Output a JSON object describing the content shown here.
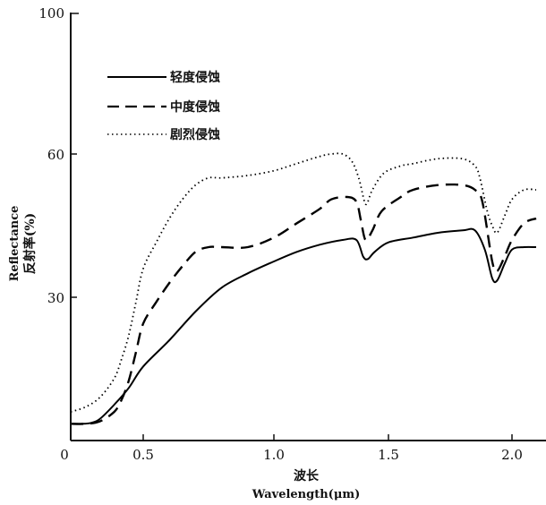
{
  "chart_data": {
    "type": "line",
    "xlabel_cn": "波长",
    "xlabel_en": "Wavelength(μm)",
    "ylabel_en": "Reflectance",
    "ylabel_cn": "反射率(%)",
    "xlim": [
      0,
      2.1
    ],
    "ylim": [
      0,
      100
    ],
    "x_ticks": [
      "0",
      "0.5",
      "1.0",
      "1.5",
      "2.0"
    ],
    "y_ticks": [
      "30",
      "60",
      "100"
    ],
    "grid": false,
    "legend_position": "top-left",
    "series": [
      {
        "name": "轻度侵蚀",
        "style": "solid",
        "x": [
          0.0,
          0.08,
          0.14,
          0.2,
          0.3,
          0.4,
          0.5,
          0.6,
          0.7,
          0.8,
          0.9,
          1.0,
          1.1,
          1.2,
          1.3,
          1.36,
          1.39,
          1.41,
          1.44,
          1.5,
          1.6,
          1.7,
          1.8,
          1.85,
          1.89,
          1.92,
          1.94,
          1.97,
          2.0,
          2.05,
          2.1
        ],
        "values": [
          3.5,
          3.5,
          3.7,
          4.5,
          7.5,
          11.0,
          15.5,
          21.0,
          27.0,
          32.0,
          35.0,
          37.5,
          39.5,
          41.0,
          42.0,
          42.0,
          38.5,
          38.0,
          39.5,
          41.5,
          42.5,
          43.5,
          44.0,
          44.0,
          40.0,
          34.0,
          33.5,
          37.0,
          40.0,
          40.5,
          40.5
        ]
      },
      {
        "name": "中度侵蚀",
        "style": "dashed",
        "x": [
          0.0,
          0.1,
          0.2,
          0.3,
          0.35,
          0.4,
          0.45,
          0.5,
          0.55,
          0.6,
          0.65,
          0.7,
          0.75,
          0.8,
          0.9,
          1.0,
          1.1,
          1.2,
          1.25,
          1.32,
          1.36,
          1.38,
          1.4,
          1.43,
          1.47,
          1.55,
          1.6,
          1.7,
          1.8,
          1.85,
          1.88,
          1.92,
          1.94,
          1.97,
          2.0,
          2.05,
          2.1
        ],
        "values": [
          3.5,
          3.5,
          4.0,
          6.0,
          8.5,
          12.5,
          18.5,
          24.5,
          29.0,
          33.0,
          36.5,
          39.5,
          40.5,
          40.5,
          40.5,
          42.5,
          45.5,
          48.5,
          50.5,
          51.0,
          50.0,
          46.0,
          42.0,
          44.0,
          48.0,
          51.0,
          52.5,
          53.5,
          53.5,
          52.5,
          50.0,
          37.5,
          35.5,
          38.5,
          42.0,
          45.5,
          46.5
        ]
      },
      {
        "name": "剧烈侵蚀",
        "style": "dotted",
        "x": [
          0.0,
          0.1,
          0.2,
          0.3,
          0.35,
          0.4,
          0.45,
          0.5,
          0.55,
          0.6,
          0.65,
          0.7,
          0.75,
          0.8,
          0.9,
          1.0,
          1.1,
          1.2,
          1.25,
          1.3,
          1.34,
          1.37,
          1.39,
          1.4,
          1.41,
          1.43,
          1.48,
          1.55,
          1.6,
          1.7,
          1.8,
          1.85,
          1.87,
          1.9,
          1.92,
          1.94,
          1.97,
          2.0,
          2.05,
          2.1
        ],
        "values": [
          6.0,
          7.0,
          9.0,
          13.0,
          17.0,
          22.0,
          29.0,
          36.0,
          41.5,
          46.5,
          50.5,
          53.5,
          55.0,
          55.0,
          55.5,
          56.5,
          58.0,
          59.5,
          60.0,
          60.0,
          58.5,
          55.0,
          51.0,
          49.5,
          50.0,
          52.5,
          56.0,
          57.5,
          58.0,
          59.0,
          59.0,
          57.5,
          55.0,
          48.0,
          45.0,
          43.5,
          47.0,
          50.5,
          52.5,
          52.5
        ]
      }
    ]
  }
}
